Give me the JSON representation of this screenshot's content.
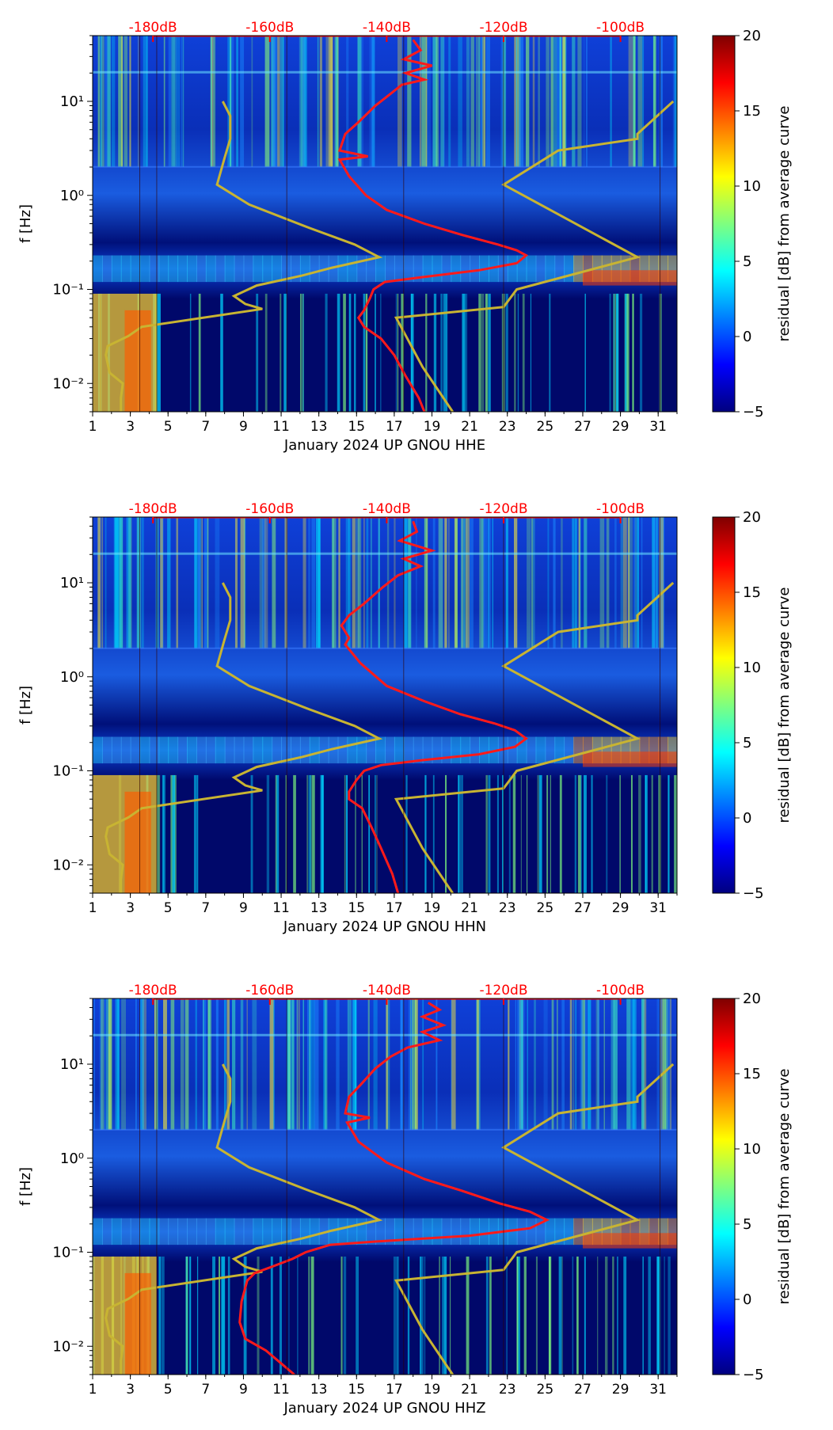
{
  "colorbar": {
    "label": "residual [dB] from average curve",
    "range": [
      -5,
      20
    ],
    "ticks": [
      "20",
      "15",
      "10",
      "5",
      "0",
      "−5"
    ],
    "tick_values": [
      20,
      15,
      10,
      5,
      0,
      -5
    ],
    "colors": [
      "#00007f",
      "#0000ff",
      "#007fff",
      "#00ffff",
      "#7fff7f",
      "#ffff00",
      "#ff7f00",
      "#ff0000",
      "#7f0000"
    ]
  },
  "colors": {
    "noise_model": "#c8b432",
    "psd_curve": "#ff1a1a",
    "top_labels": "#ff0000",
    "background_low": "#0a1e9a"
  },
  "chart_data": [
    {
      "type": "heatmap",
      "title": "",
      "xlabel": "January 2024 UP GNOU  HHE",
      "ylabel": "f [Hz]",
      "x_range": [
        1,
        32
      ],
      "y_range_hz": [
        0.005,
        50
      ],
      "x_ticks": [
        "1",
        "3",
        "5",
        "7",
        "9",
        "11",
        "13",
        "15",
        "17",
        "19",
        "21",
        "23",
        "25",
        "27",
        "29",
        "31"
      ],
      "y_ticks": [
        "10⁻²",
        "10⁻¹",
        "10⁰",
        "10¹"
      ],
      "y_tick_values": [
        0.01,
        0.1,
        1,
        10
      ],
      "top_axis_labels": [
        "-180dB",
        "-160dB",
        "-140dB",
        "-120dB",
        "-100dB"
      ],
      "top_axis_days": [
        4.2,
        10.4,
        16.6,
        22.8,
        29.0
      ],
      "psd_curve_day_vs_hz": [
        [
          18.0,
          45
        ],
        [
          18.4,
          35
        ],
        [
          17.5,
          28
        ],
        [
          19.0,
          24
        ],
        [
          17.6,
          20
        ],
        [
          18.6,
          17
        ],
        [
          17.4,
          15
        ],
        [
          16.8,
          12
        ],
        [
          16.0,
          9
        ],
        [
          15.1,
          6
        ],
        [
          14.4,
          4.5
        ],
        [
          14.1,
          3
        ],
        [
          15.6,
          2.6
        ],
        [
          14.1,
          2.4
        ],
        [
          14.6,
          1.6
        ],
        [
          15.5,
          1.0
        ],
        [
          16.6,
          0.7
        ],
        [
          18.6,
          0.5
        ],
        [
          20.6,
          0.38
        ],
        [
          22.5,
          0.3
        ],
        [
          23.5,
          0.26
        ],
        [
          24.0,
          0.23
        ],
        [
          23.5,
          0.19
        ],
        [
          21.5,
          0.16
        ],
        [
          18.5,
          0.135
        ],
        [
          16.5,
          0.12
        ],
        [
          15.9,
          0.1
        ],
        [
          15.7,
          0.08
        ],
        [
          15.4,
          0.06
        ],
        [
          15.1,
          0.05
        ],
        [
          15.4,
          0.04
        ],
        [
          16.3,
          0.03
        ],
        [
          17.0,
          0.02
        ],
        [
          17.6,
          0.012
        ],
        [
          18.3,
          0.007
        ],
        [
          18.6,
          0.005
        ]
      ],
      "noise_models": {
        "low": [
          [
            7.9,
            10
          ],
          [
            8.3,
            7
          ],
          [
            8.3,
            4
          ],
          [
            8.0,
            2.5
          ],
          [
            7.6,
            1.3
          ],
          [
            9.3,
            0.8
          ],
          [
            12.5,
            0.45
          ],
          [
            14.9,
            0.3
          ],
          [
            16.2,
            0.22
          ],
          [
            13.7,
            0.17
          ],
          [
            12.1,
            0.14
          ],
          [
            9.7,
            0.11
          ],
          [
            8.5,
            0.085
          ],
          [
            9.1,
            0.07
          ],
          [
            10.0,
            0.062
          ],
          [
            3.6,
            0.04
          ],
          [
            2.9,
            0.032
          ],
          [
            1.8,
            0.025
          ],
          [
            1.7,
            0.02
          ],
          [
            1.9,
            0.013
          ],
          [
            2.6,
            0.01
          ],
          [
            2.5,
            0.007
          ],
          [
            2.5,
            0.005
          ]
        ],
        "high": [
          [
            31.8,
            10
          ],
          [
            29.9,
            4.5
          ],
          [
            29.9,
            4.0
          ],
          [
            25.7,
            3.0
          ],
          [
            22.8,
            1.3
          ],
          [
            29.9,
            0.22
          ],
          [
            23.5,
            0.1
          ],
          [
            22.8,
            0.065
          ],
          [
            17.1,
            0.05
          ],
          [
            18.5,
            0.015
          ],
          [
            20.1,
            0.005
          ]
        ]
      }
    },
    {
      "type": "heatmap",
      "title": "",
      "xlabel": "January 2024 UP GNOU  HHN",
      "ylabel": "f [Hz]",
      "x_range": [
        1,
        32
      ],
      "y_range_hz": [
        0.005,
        50
      ],
      "x_ticks": [
        "1",
        "3",
        "5",
        "7",
        "9",
        "11",
        "13",
        "15",
        "17",
        "19",
        "21",
        "23",
        "25",
        "27",
        "29",
        "31"
      ],
      "y_ticks": [
        "10⁻²",
        "10⁻¹",
        "10⁰",
        "10¹"
      ],
      "y_tick_values": [
        0.01,
        0.1,
        1,
        10
      ],
      "top_axis_labels": [
        "-180dB",
        "-160dB",
        "-140dB",
        "-120dB",
        "-100dB"
      ],
      "top_axis_days": [
        4.2,
        10.4,
        16.6,
        22.8,
        29.0
      ],
      "psd_curve_day_vs_hz": [
        [
          18.0,
          45
        ],
        [
          18.2,
          35
        ],
        [
          17.3,
          28
        ],
        [
          19.0,
          22
        ],
        [
          17.5,
          18
        ],
        [
          18.4,
          15
        ],
        [
          17.2,
          12
        ],
        [
          16.4,
          9
        ],
        [
          15.4,
          6
        ],
        [
          14.6,
          4.5
        ],
        [
          14.2,
          3.5
        ],
        [
          14.6,
          2.6
        ],
        [
          14.4,
          2.2
        ],
        [
          15.2,
          1.4
        ],
        [
          16.6,
          0.8
        ],
        [
          18.6,
          0.55
        ],
        [
          20.5,
          0.4
        ],
        [
          22.3,
          0.32
        ],
        [
          23.4,
          0.27
        ],
        [
          24.0,
          0.22
        ],
        [
          23.4,
          0.18
        ],
        [
          21.5,
          0.15
        ],
        [
          18.5,
          0.13
        ],
        [
          16.3,
          0.115
        ],
        [
          15.4,
          0.1
        ],
        [
          15.0,
          0.08
        ],
        [
          14.6,
          0.06
        ],
        [
          14.6,
          0.05
        ],
        [
          15.3,
          0.04
        ],
        [
          15.8,
          0.025
        ],
        [
          16.3,
          0.015
        ],
        [
          16.9,
          0.008
        ],
        [
          17.2,
          0.005
        ]
      ],
      "noise_models": {
        "low": [
          [
            7.9,
            10
          ],
          [
            8.3,
            7
          ],
          [
            8.3,
            4
          ],
          [
            8.0,
            2.5
          ],
          [
            7.6,
            1.3
          ],
          [
            9.3,
            0.8
          ],
          [
            12.5,
            0.45
          ],
          [
            14.9,
            0.3
          ],
          [
            16.2,
            0.22
          ],
          [
            13.7,
            0.17
          ],
          [
            12.1,
            0.14
          ],
          [
            9.7,
            0.11
          ],
          [
            8.5,
            0.085
          ],
          [
            9.1,
            0.07
          ],
          [
            10.0,
            0.062
          ],
          [
            3.6,
            0.04
          ],
          [
            2.9,
            0.032
          ],
          [
            1.8,
            0.025
          ],
          [
            1.7,
            0.02
          ],
          [
            1.9,
            0.013
          ],
          [
            2.6,
            0.01
          ],
          [
            2.5,
            0.007
          ],
          [
            2.5,
            0.005
          ]
        ],
        "high": [
          [
            31.8,
            10
          ],
          [
            29.9,
            4.5
          ],
          [
            29.9,
            4.0
          ],
          [
            25.7,
            3.0
          ],
          [
            22.8,
            1.3
          ],
          [
            29.9,
            0.22
          ],
          [
            23.5,
            0.1
          ],
          [
            22.8,
            0.065
          ],
          [
            17.1,
            0.05
          ],
          [
            18.5,
            0.015
          ],
          [
            20.1,
            0.005
          ]
        ]
      }
    },
    {
      "type": "heatmap",
      "title": "",
      "xlabel": "January 2024 UP GNOU  HHZ",
      "ylabel": "f [Hz]",
      "x_range": [
        1,
        32
      ],
      "y_range_hz": [
        0.005,
        50
      ],
      "x_ticks": [
        "1",
        "3",
        "5",
        "7",
        "9",
        "11",
        "13",
        "15",
        "17",
        "19",
        "21",
        "23",
        "25",
        "27",
        "29",
        "31"
      ],
      "y_ticks": [
        "10⁻²",
        "10⁻¹",
        "10⁰",
        "10¹"
      ],
      "y_tick_values": [
        0.01,
        0.1,
        1,
        10
      ],
      "top_axis_labels": [
        "-180dB",
        "-160dB",
        "-140dB",
        "-120dB",
        "-100dB"
      ],
      "top_axis_days": [
        4.2,
        10.4,
        16.6,
        22.8,
        29.0
      ],
      "psd_curve_day_vs_hz": [
        [
          18.8,
          45
        ],
        [
          19.4,
          38
        ],
        [
          18.5,
          32
        ],
        [
          19.6,
          26
        ],
        [
          18.5,
          22
        ],
        [
          19.4,
          18
        ],
        [
          17.7,
          15
        ],
        [
          16.8,
          12
        ],
        [
          16.0,
          9
        ],
        [
          15.2,
          6
        ],
        [
          14.6,
          4.5
        ],
        [
          14.4,
          3
        ],
        [
          15.7,
          2.7
        ],
        [
          14.5,
          2.4
        ],
        [
          15.1,
          1.5
        ],
        [
          16.6,
          0.9
        ],
        [
          18.6,
          0.6
        ],
        [
          20.6,
          0.45
        ],
        [
          22.6,
          0.33
        ],
        [
          24.2,
          0.27
        ],
        [
          25.1,
          0.22
        ],
        [
          24.2,
          0.18
        ],
        [
          21.0,
          0.15
        ],
        [
          16.0,
          0.13
        ],
        [
          13.6,
          0.12
        ],
        [
          12.3,
          0.1
        ],
        [
          11.6,
          0.085
        ],
        [
          10.5,
          0.07
        ],
        [
          9.6,
          0.06
        ],
        [
          9.2,
          0.05
        ],
        [
          8.9,
          0.03
        ],
        [
          8.8,
          0.018
        ],
        [
          9.1,
          0.012
        ],
        [
          10.2,
          0.009
        ],
        [
          11.7,
          0.005
        ]
      ],
      "noise_models": {
        "low": [
          [
            7.9,
            10
          ],
          [
            8.3,
            7
          ],
          [
            8.3,
            4
          ],
          [
            8.0,
            2.5
          ],
          [
            7.6,
            1.3
          ],
          [
            9.3,
            0.8
          ],
          [
            12.5,
            0.45
          ],
          [
            14.9,
            0.3
          ],
          [
            16.2,
            0.22
          ],
          [
            13.7,
            0.17
          ],
          [
            12.1,
            0.14
          ],
          [
            9.7,
            0.11
          ],
          [
            8.5,
            0.085
          ],
          [
            9.1,
            0.07
          ],
          [
            10.0,
            0.062
          ],
          [
            3.6,
            0.04
          ],
          [
            2.9,
            0.032
          ],
          [
            1.8,
            0.025
          ],
          [
            1.7,
            0.02
          ],
          [
            1.9,
            0.013
          ],
          [
            2.6,
            0.01
          ],
          [
            2.5,
            0.007
          ],
          [
            2.5,
            0.005
          ]
        ],
        "high": [
          [
            31.8,
            10
          ],
          [
            29.9,
            4.5
          ],
          [
            29.9,
            4.0
          ],
          [
            25.7,
            3.0
          ],
          [
            22.8,
            1.3
          ],
          [
            29.9,
            0.22
          ],
          [
            23.5,
            0.1
          ],
          [
            22.8,
            0.065
          ],
          [
            17.1,
            0.05
          ],
          [
            18.5,
            0.015
          ],
          [
            20.1,
            0.005
          ]
        ]
      }
    }
  ]
}
